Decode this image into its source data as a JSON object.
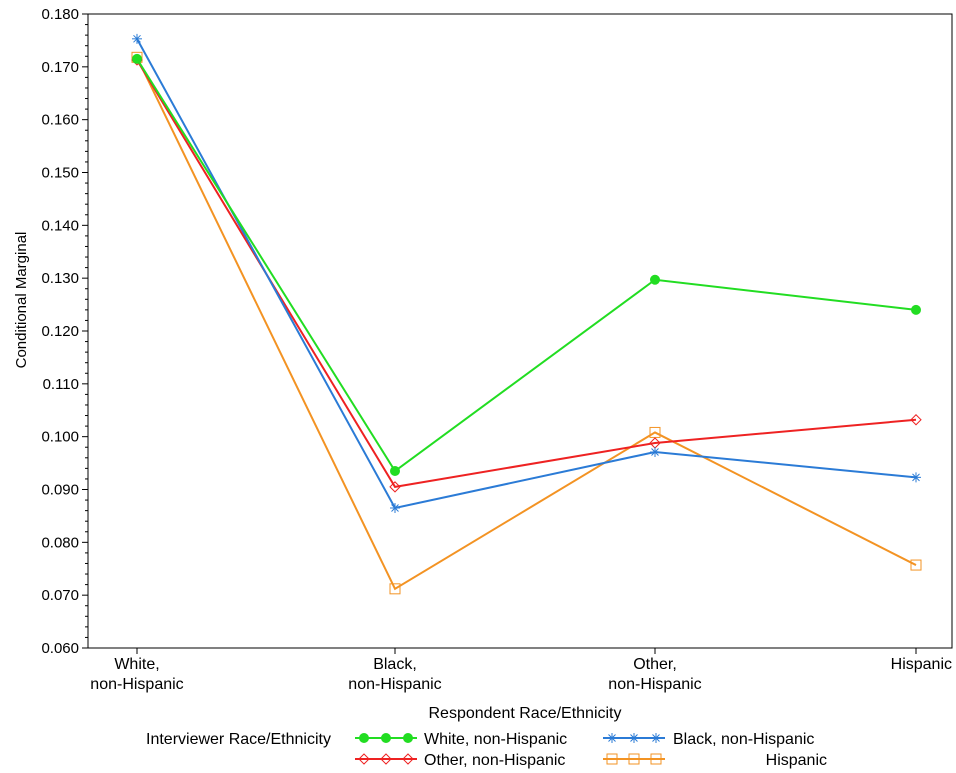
{
  "chart_data": {
    "type": "line",
    "title": "",
    "xlabel": "Respondent Race/Ethnicity",
    "ylabel": "Conditional Marginal",
    "ylim": [
      0.06,
      0.18
    ],
    "yticks": [
      "0.060",
      "0.070",
      "0.080",
      "0.090",
      "0.100",
      "0.110",
      "0.120",
      "0.130",
      "0.140",
      "0.150",
      "0.160",
      "0.170",
      "0.180"
    ],
    "categories": [
      [
        "White,",
        "non-Hispanic"
      ],
      [
        "Black,",
        "non-Hispanic"
      ],
      [
        "Other,",
        "non-Hispanic"
      ],
      [
        "Hispanic"
      ]
    ],
    "grid": false,
    "legend": {
      "placement": "bottom",
      "title": "Interviewer Race/Ethnicity"
    },
    "series": [
      {
        "name": "White, non-Hispanic",
        "color": "#22dd22",
        "marker": "filled-circle",
        "values": [
          0.1715,
          0.0935,
          0.1297,
          0.124
        ]
      },
      {
        "name": "Black, non-Hispanic",
        "color": "#2b7bd6",
        "marker": "star",
        "values": [
          0.1753,
          0.0865,
          0.0971,
          0.0923
        ]
      },
      {
        "name": "Other, non-Hispanic",
        "color": "#ee2222",
        "marker": "open-diamond",
        "values": [
          0.1713,
          0.0905,
          0.0988,
          0.1032
        ]
      },
      {
        "name": "Hispanic",
        "color": "#f39323",
        "marker": "open-square",
        "values": [
          0.1718,
          0.0712,
          0.1008,
          0.0757
        ]
      }
    ]
  }
}
